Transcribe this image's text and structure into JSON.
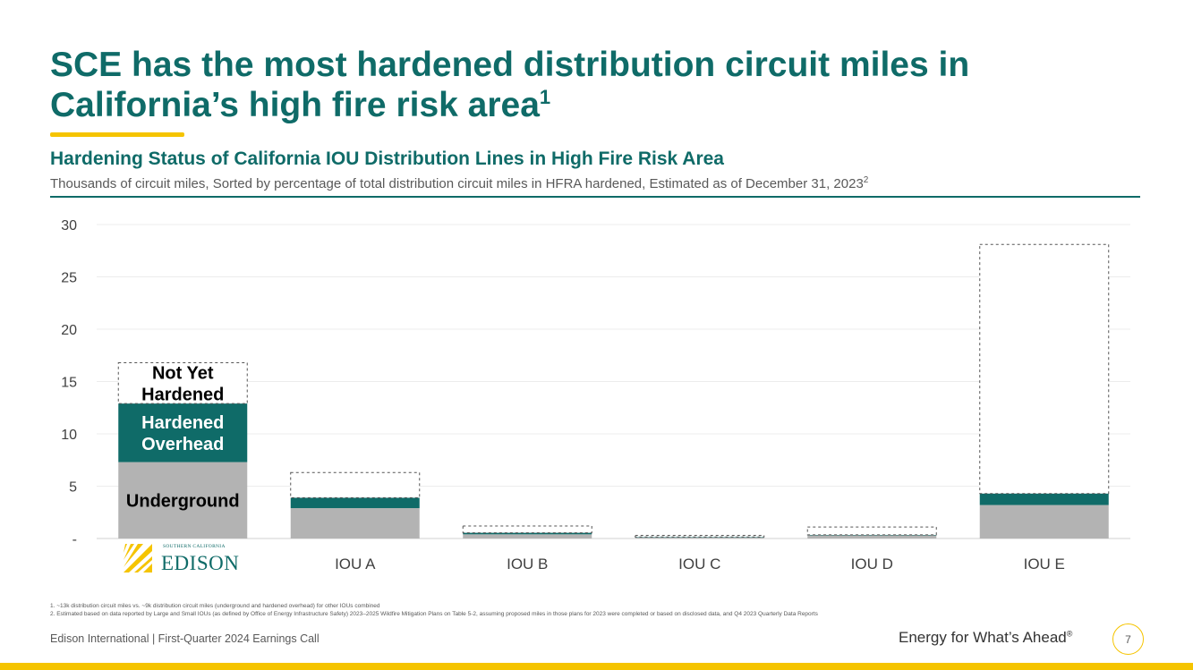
{
  "slide": {
    "title": "SCE has the most hardened distribution circuit miles in California’s high fire risk area",
    "title_sup": "1",
    "footer_left": "Edison International |  First-Quarter 2024 Earnings Call",
    "tagline": "Energy for What’s Ahead",
    "tagline_mark": "®",
    "page_number": "7",
    "footnotes": [
      "1.   ~13k distribution circuit miles vs. ~9k distribution circuit miles (underground and hardened overhead) for other IOUs combined",
      "2.   Estimated based on data reported by Large and Small IOUs (as defined by Office of Energy Infrastructure Safety) 2023–2025 Wildfire Mitigation Plans on Table 5-2, assuming proposed miles in those plans for 2023 were completed or based on disclosed data, and Q4 2023 Quarterly Data Reports"
    ],
    "logo": {
      "small_text": "SOUTHERN CALIFORNIA",
      "big_text": "EDISON"
    },
    "colors": {
      "teal": "#0f6b68",
      "gold": "#f5c400",
      "gray": "#b3b3b3"
    }
  },
  "chart_data": {
    "type": "bar",
    "stacked": true,
    "title": "Hardening Status of California IOU Distribution Lines in High Fire Risk Area",
    "subtitle": "Thousands of circuit miles, Sorted by percentage of total distribution circuit miles in HFRA hardened, Estimated as of December 31, 2023",
    "subtitle_sup": "2",
    "categories": [
      "SCE",
      "IOU A",
      "IOU B",
      "IOU C",
      "IOU D",
      "IOU E"
    ],
    "series": [
      {
        "name": "Underground",
        "label": "Underground",
        "color": "#b3b3b3",
        "values": [
          7.3,
          2.9,
          0.4,
          0.1,
          0.3,
          3.2
        ]
      },
      {
        "name": "Hardened Overhead",
        "label": "Hardened Overhead",
        "color": "#0f6b68",
        "values": [
          5.6,
          1.0,
          0.15,
          0.05,
          0.05,
          1.1
        ]
      },
      {
        "name": "Not Yet Hardened",
        "label": "Not Yet Hardened",
        "color": "#ffffff",
        "values": [
          3.9,
          2.4,
          0.65,
          0.15,
          0.75,
          23.8
        ]
      }
    ],
    "ylim": [
      0,
      30
    ],
    "yticks": [
      0,
      5,
      10,
      15,
      20,
      25,
      30
    ],
    "ytick_labels": [
      "-",
      "5",
      "10",
      "15",
      "20",
      "25",
      "30"
    ],
    "grid": true,
    "xlabel": "",
    "ylabel": ""
  }
}
